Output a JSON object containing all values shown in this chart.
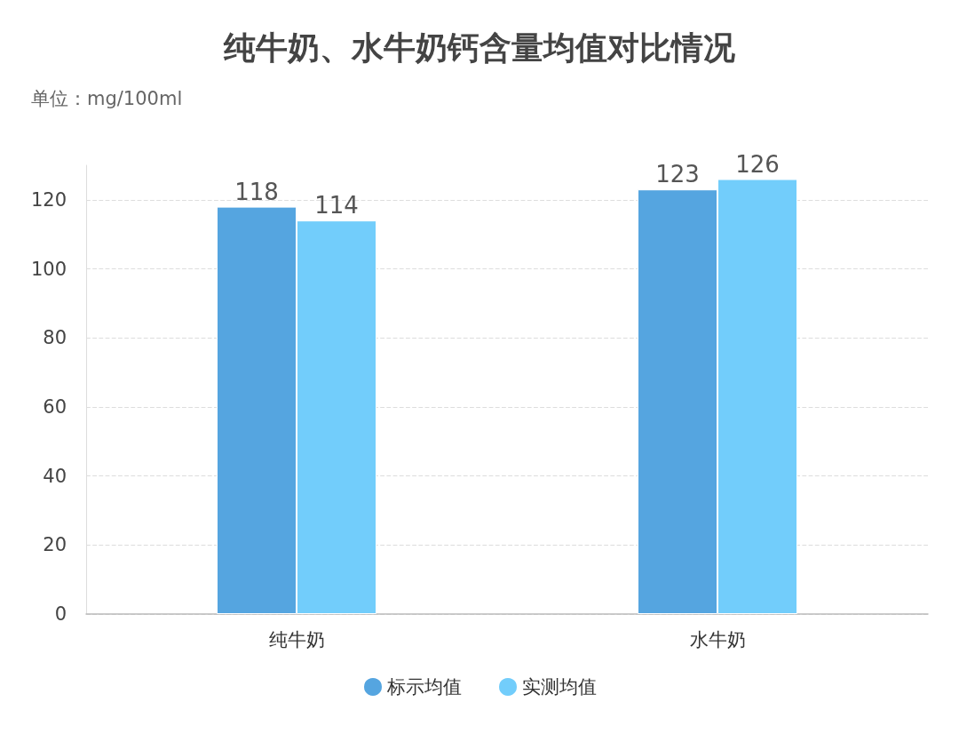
{
  "chart_data": {
    "type": "bar",
    "title": "纯牛奶、水牛奶钙含量均值对比情况",
    "subtitle": "单位：mg/100ml",
    "categories": [
      "纯牛奶",
      "水牛奶"
    ],
    "series": [
      {
        "name": "标示均值",
        "color": "#55a5e0",
        "values": [
          118,
          123
        ]
      },
      {
        "name": "实测均值",
        "color": "#72cdfb",
        "values": [
          114,
          126
        ]
      }
    ],
    "ylim": [
      0,
      130
    ],
    "yticks": [
      0,
      20,
      40,
      60,
      80,
      100,
      120
    ],
    "grid": "y",
    "legend": "bottom",
    "data_labels": true
  }
}
